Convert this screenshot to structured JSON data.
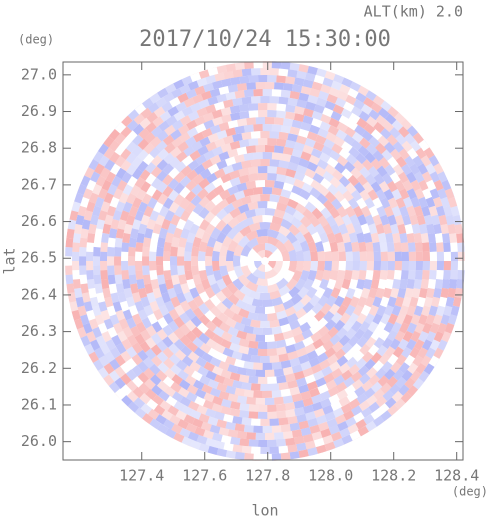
{
  "chart_data": {
    "type": "radar-ppi",
    "title": "2017/10/24 15:30:00",
    "altitude_label": "ALT(km) 2.0",
    "y_unit": "(deg)",
    "x_unit": "(deg)",
    "ylabel": "lat",
    "xlabel": "lon",
    "xlim": [
      127.15,
      128.42
    ],
    "ylim": [
      25.95,
      27.035
    ],
    "xticks": [
      127.4,
      127.6,
      127.8,
      {
        "value": 128,
        "label": "128.0"
      },
      128.2,
      128.4
    ],
    "yticks": [
      {
        "value": 26,
        "label": "26.0"
      },
      26.1,
      26.2,
      26.3,
      26.4,
      26.5,
      26.6,
      26.7,
      26.8,
      26.9,
      {
        "value": 27,
        "label": "27.0"
      }
    ],
    "colors": [
      "#f7a8a8",
      "#aab0f7"
    ]
  }
}
